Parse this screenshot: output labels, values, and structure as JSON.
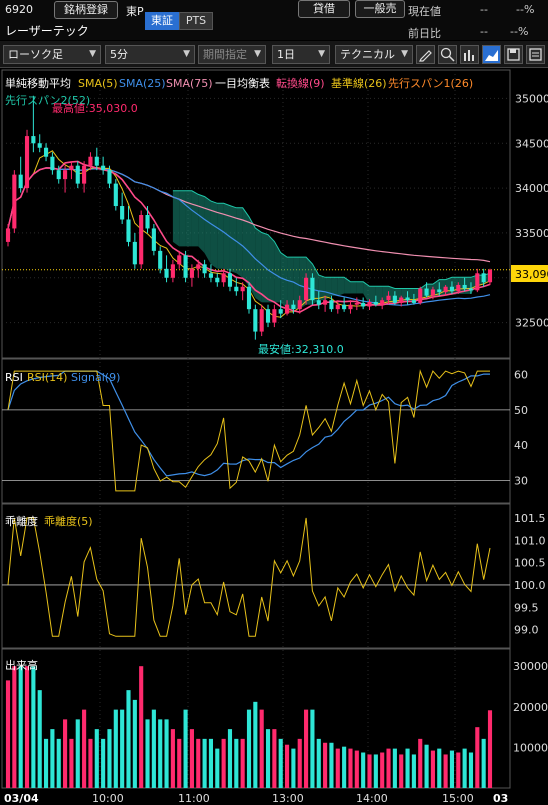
{
  "header": {
    "code": "6920",
    "name": "レーザーテック",
    "watch_btn": "銘柄登録",
    "market": "東P",
    "tab_tse": "東証",
    "tab_pts": "PTS",
    "btn_lend": "貸借",
    "btn_general": "一般売",
    "current_label": "現在値",
    "current_value": "--",
    "current_pct": "--%",
    "prev_label": "前日比",
    "prev_value": "--",
    "prev_pct": "--%"
  },
  "toolbar": {
    "chart_type": "ローソク足",
    "interval": "5分",
    "period": "期間指定",
    "span": "1日",
    "technical": "テクニカル"
  },
  "legend": {
    "group": "単純移動平均",
    "sma5": "SMA(5)",
    "sma25": "SMA(25)",
    "sma75": "SMA(75)",
    "ichimoku": "一目均衡表",
    "tenkan": "転換線(9)",
    "kijun": "基準線(26)",
    "spanA": "先行スパン1(26)",
    "spanB": "先行スパン2(52)",
    "max_label": "最高値:35,030.0",
    "min_label": "最安値:32,310.0",
    "price_tag": "33,090"
  },
  "rsi": {
    "title": "RSI",
    "rsi_label": "RSI(14)",
    "signal_label": "Signal(9)",
    "ticks": [
      "60",
      "50",
      "40",
      "30"
    ]
  },
  "dev": {
    "title": "乖離度",
    "label": "乖離度(5)",
    "ticks": [
      "101.5",
      "101.0",
      "100.5",
      "100.0",
      "99.5",
      "99.0"
    ]
  },
  "vol": {
    "title": "出来高",
    "ticks": [
      "300000",
      "200000",
      "100000"
    ]
  },
  "x_labels": {
    "d1": "03/04",
    "t1": "10:00",
    "t2": "11:00",
    "t3": "13:00",
    "t4": "14:00",
    "t5": "15:00",
    "d2": "03"
  },
  "colors": {
    "up": "#ff2a6d",
    "down": "#2ee6d6",
    "sma5": "#e8c21a",
    "sma25": "#3f8fe8",
    "sma75": "#f08fb0",
    "cloud": "#1a8f7a"
  },
  "chart_data": {
    "type": "candlestick",
    "interval": "5分",
    "price_axis": {
      "ticks": [
        35000,
        34500,
        34000,
        33500,
        33000,
        32500
      ],
      "range": [
        32150,
        35250
      ]
    },
    "max": 35030,
    "min": 32310,
    "last": 33090,
    "ohlc": [
      [
        33400,
        33600,
        33350,
        33550
      ],
      [
        33550,
        34200,
        33500,
        34150
      ],
      [
        34150,
        34350,
        33950,
        34000
      ],
      [
        34000,
        34650,
        33950,
        34580
      ],
      [
        34580,
        35030,
        34400,
        34500
      ],
      [
        34500,
        34600,
        34400,
        34450
      ],
      [
        34450,
        34500,
        34300,
        34350
      ],
      [
        34350,
        34400,
        34150,
        34200
      ],
      [
        34200,
        34250,
        34050,
        34100
      ],
      [
        34100,
        34250,
        33950,
        34200
      ],
      [
        34200,
        34300,
        34100,
        34250
      ],
      [
        34250,
        34300,
        34000,
        34050
      ],
      [
        34050,
        34300,
        33950,
        34250
      ],
      [
        34250,
        34400,
        34200,
        34350
      ],
      [
        34350,
        34450,
        34200,
        34250
      ],
      [
        34250,
        34350,
        34150,
        34200
      ],
      [
        34200,
        34250,
        34000,
        34050
      ],
      [
        34050,
        34100,
        33750,
        33800
      ],
      [
        33800,
        33950,
        33600,
        33650
      ],
      [
        33650,
        33800,
        33350,
        33400
      ],
      [
        33400,
        33500,
        33100,
        33150
      ],
      [
        33150,
        33750,
        33100,
        33700
      ],
      [
        33700,
        33800,
        33500,
        33550
      ],
      [
        33550,
        33600,
        33250,
        33300
      ],
      [
        33300,
        33350,
        33050,
        33100
      ],
      [
        33100,
        33250,
        32950,
        33000
      ],
      [
        33000,
        33200,
        32950,
        33150
      ],
      [
        33150,
        33300,
        33100,
        33250
      ],
      [
        33250,
        33300,
        32950,
        33000
      ],
      [
        33000,
        33150,
        32900,
        33100
      ],
      [
        33100,
        33200,
        33000,
        33150
      ],
      [
        33150,
        33200,
        33000,
        33050
      ],
      [
        33050,
        33150,
        32950,
        33000
      ],
      [
        33000,
        33050,
        32900,
        32950
      ],
      [
        32950,
        33100,
        32900,
        33050
      ],
      [
        33050,
        33100,
        32850,
        32900
      ],
      [
        32900,
        33000,
        32800,
        32850
      ],
      [
        32850,
        32950,
        32750,
        32900
      ],
      [
        32900,
        32950,
        32600,
        32650
      ],
      [
        32650,
        32700,
        32310,
        32400
      ],
      [
        32400,
        32700,
        32350,
        32650
      ],
      [
        32650,
        32700,
        32450,
        32500
      ],
      [
        32500,
        32700,
        32450,
        32650
      ],
      [
        32650,
        32750,
        32550,
        32600
      ],
      [
        32600,
        32750,
        32580,
        32700
      ],
      [
        32700,
        32750,
        32600,
        32650
      ],
      [
        32650,
        32800,
        32600,
        32750
      ],
      [
        32750,
        33050,
        32700,
        33000
      ],
      [
        33000,
        33050,
        32700,
        32750
      ],
      [
        32750,
        32850,
        32650,
        32700
      ],
      [
        32700,
        32800,
        32620,
        32750
      ],
      [
        32750,
        32800,
        32620,
        32650
      ],
      [
        32650,
        32750,
        32600,
        32700
      ],
      [
        32700,
        32780,
        32620,
        32650
      ],
      [
        32650,
        32750,
        32600,
        32700
      ],
      [
        32700,
        32780,
        32640,
        32720
      ],
      [
        32720,
        32780,
        32650,
        32680
      ],
      [
        32680,
        32760,
        32640,
        32730
      ],
      [
        32730,
        32800,
        32680,
        32700
      ],
      [
        32700,
        32780,
        32650,
        32750
      ],
      [
        32750,
        32850,
        32700,
        32800
      ],
      [
        32800,
        32850,
        32700,
        32720
      ],
      [
        32720,
        32800,
        32680,
        32780
      ],
      [
        32780,
        32850,
        32700,
        32750
      ],
      [
        32750,
        32820,
        32700,
        32720
      ],
      [
        32720,
        32900,
        32700,
        32880
      ],
      [
        32880,
        32950,
        32780,
        32800
      ],
      [
        32800,
        32900,
        32760,
        32870
      ],
      [
        32870,
        32950,
        32800,
        32840
      ],
      [
        32840,
        32920,
        32800,
        32900
      ],
      [
        32900,
        32960,
        32820,
        32850
      ],
      [
        32850,
        32950,
        32820,
        32920
      ],
      [
        32920,
        33000,
        32850,
        32880
      ],
      [
        32880,
        32950,
        32820,
        32860
      ],
      [
        32860,
        33100,
        32840,
        33050
      ],
      [
        33050,
        33100,
        32900,
        32950
      ],
      [
        32950,
        33100,
        32920,
        33090
      ]
    ],
    "rsi_axis": [
      25,
      63
    ],
    "dev_axis": [
      98.7,
      101.7
    ],
    "volume_axis": [
      0,
      330000
    ],
    "x_ticks": [
      "03/04",
      "10:00",
      "11:00",
      "13:00",
      "14:00",
      "15:00",
      "03"
    ]
  }
}
